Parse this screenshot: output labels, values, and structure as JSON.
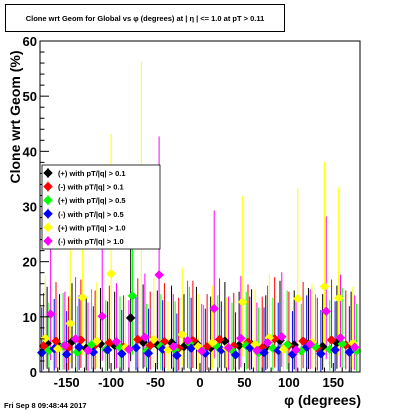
{
  "chart_data": {
    "type": "scatter",
    "title": "Clone wrt Geom for Global vs φ (degrees) at | η | <= 1.0 at pT > 0.11",
    "xlabel": "φ (degrees)",
    "ylabel": "Clone wrt Geom (%)",
    "xlim": [
      -180,
      180
    ],
    "ylim": [
      0,
      60
    ],
    "xticks": [
      "-150",
      "-100",
      "-50",
      "0",
      "50",
      "100",
      "150"
    ],
    "yticks": [
      "0",
      "10",
      "20",
      "30",
      "40",
      "50",
      "60"
    ],
    "grid": false,
    "legend_position": "left",
    "series": [
      {
        "name": "(+) with pT/|q| > 0.1",
        "color": "#000000",
        "points": [
          [
            -172,
            5.2
          ],
          [
            -158,
            4.6
          ],
          [
            -144,
            5.5
          ],
          [
            -128,
            4.3
          ],
          [
            -112,
            5.1
          ],
          [
            -96,
            4.8
          ],
          [
            -78,
            9.8
          ],
          [
            -64,
            5.4
          ],
          [
            -48,
            4.9
          ],
          [
            -32,
            5.3
          ],
          [
            -18,
            4.6
          ],
          [
            -4,
            5.2
          ],
          [
            12,
            4.4
          ],
          [
            28,
            5.6
          ],
          [
            44,
            4.8
          ],
          [
            58,
            5.0
          ],
          [
            74,
            4.5
          ],
          [
            90,
            5.7
          ],
          [
            106,
            4.9
          ],
          [
            122,
            5.1
          ],
          [
            138,
            4.6
          ],
          [
            154,
            5.3
          ],
          [
            170,
            4.8
          ]
        ]
      },
      {
        "name": "(-) with pT/|q| > 0.1",
        "color": "#ff0000",
        "points": [
          [
            -176,
            4.7
          ],
          [
            -162,
            5.6
          ],
          [
            -148,
            4.4
          ],
          [
            -134,
            5.8
          ],
          [
            -118,
            4.9
          ],
          [
            -102,
            5.3
          ],
          [
            -86,
            4.5
          ],
          [
            -70,
            5.9
          ],
          [
            -56,
            4.8
          ],
          [
            -40,
            5.5
          ],
          [
            -24,
            4.3
          ],
          [
            -8,
            5.7
          ],
          [
            8,
            4.6
          ],
          [
            22,
            5.9
          ],
          [
            38,
            4.7
          ],
          [
            54,
            5.4
          ],
          [
            70,
            4.4
          ],
          [
            84,
            6.0
          ],
          [
            100,
            4.8
          ],
          [
            116,
            5.6
          ],
          [
            132,
            4.3
          ],
          [
            148,
            5.8
          ],
          [
            164,
            4.9
          ]
        ]
      },
      {
        "name": "(+) with pT/|q| > 0.5",
        "color": "#00ff00",
        "points": [
          [
            -170,
            3.9
          ],
          [
            -154,
            4.7
          ],
          [
            -138,
            3.6
          ],
          [
            -122,
            5.0
          ],
          [
            -106,
            4.1
          ],
          [
            -90,
            4.4
          ],
          [
            -76,
            13.8
          ],
          [
            -60,
            3.8
          ],
          [
            -44,
            4.6
          ],
          [
            -28,
            4.0
          ],
          [
            -12,
            5.2
          ],
          [
            4,
            3.7
          ],
          [
            20,
            4.5
          ],
          [
            36,
            3.9
          ],
          [
            52,
            4.8
          ],
          [
            66,
            3.5
          ],
          [
            82,
            4.3
          ],
          [
            98,
            4.9
          ],
          [
            114,
            3.8
          ],
          [
            130,
            4.6
          ],
          [
            146,
            4.1
          ],
          [
            160,
            5.1
          ],
          [
            176,
            3.8
          ]
        ]
      },
      {
        "name": "(-) with pT/|q| > 0.5",
        "color": "#0000ff",
        "points": [
          [
            -178,
            3.5
          ],
          [
            -164,
            4.2
          ],
          [
            -150,
            3.2
          ],
          [
            -136,
            4.5
          ],
          [
            -120,
            3.6
          ],
          [
            -104,
            4.0
          ],
          [
            -88,
            3.3
          ],
          [
            -72,
            4.4
          ],
          [
            -58,
            3.4
          ],
          [
            -42,
            4.1
          ],
          [
            -26,
            3.0
          ],
          [
            -10,
            4.3
          ],
          [
            6,
            3.4
          ],
          [
            24,
            4.0
          ],
          [
            40,
            3.1
          ],
          [
            56,
            4.4
          ],
          [
            72,
            3.5
          ],
          [
            88,
            3.9
          ],
          [
            104,
            3.2
          ],
          [
            120,
            4.5
          ],
          [
            136,
            3.3
          ],
          [
            152,
            4.0
          ],
          [
            168,
            3.6
          ]
        ]
      },
      {
        "name": "(+) with pT/|q| > 1.0",
        "color": "#ffff00",
        "points": [
          [
            -174,
            6.1
          ],
          [
            -160,
            4.2
          ],
          [
            -146,
            8.8
          ],
          [
            -132,
            13.5
          ],
          [
            -116,
            5.6
          ],
          [
            -100,
            17.8
          ],
          [
            -84,
            4.4
          ],
          [
            -66,
            23.8
          ],
          [
            -52,
            5.9
          ],
          [
            -36,
            4.0
          ],
          [
            -20,
            6.8
          ],
          [
            -2,
            4.6
          ],
          [
            14,
            5.3
          ],
          [
            30,
            4.3
          ],
          [
            48,
            12.7
          ],
          [
            62,
            5.0
          ],
          [
            78,
            6.2
          ],
          [
            94,
            4.1
          ],
          [
            110,
            13.3
          ],
          [
            126,
            5.4
          ],
          [
            140,
            15.5
          ],
          [
            156,
            13.4
          ],
          [
            172,
            5.2
          ]
        ]
      },
      {
        "name": "(-) with pT/|q| > 1.0",
        "color": "#ff00ff",
        "points": [
          [
            -168,
            10.5
          ],
          [
            -152,
            4.8
          ],
          [
            -140,
            6.0
          ],
          [
            -126,
            3.9
          ],
          [
            -110,
            10.1
          ],
          [
            -94,
            5.5
          ],
          [
            -80,
            4.1
          ],
          [
            -62,
            6.3
          ],
          [
            -46,
            17.6
          ],
          [
            -30,
            4.6
          ],
          [
            -14,
            5.7
          ],
          [
            2,
            3.8
          ],
          [
            16,
            11.5
          ],
          [
            32,
            4.4
          ],
          [
            46,
            6.1
          ],
          [
            64,
            3.9
          ],
          [
            76,
            5.3
          ],
          [
            92,
            6.4
          ],
          [
            108,
            4.0
          ],
          [
            124,
            5.0
          ],
          [
            142,
            11.0
          ],
          [
            158,
            6.2
          ],
          [
            174,
            4.5
          ]
        ]
      }
    ]
  },
  "footer": {
    "timestamp": "Fri Sep  8 09:48:44 2017"
  }
}
